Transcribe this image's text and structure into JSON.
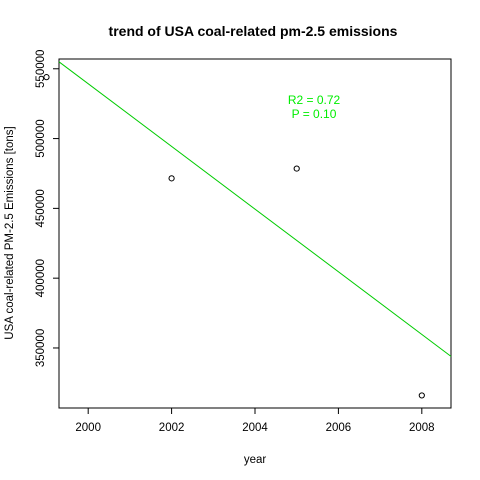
{
  "chart_data": {
    "type": "scatter",
    "title": "trend of USA coal-related pm-2.5 emissions",
    "xlabel": "year",
    "ylabel": "USA coal-related PM-2.5 Emissions [tons]",
    "xlim": [
      1999.3,
      2008.7
    ],
    "ylim": [
      307000,
      557000
    ],
    "xticks": [
      2000,
      2002,
      2004,
      2006,
      2008
    ],
    "yticks": [
      350000,
      400000,
      450000,
      500000,
      550000
    ],
    "grid": false,
    "points": [
      {
        "x": 1999,
        "y": 544000
      },
      {
        "x": 2002,
        "y": 471500
      },
      {
        "x": 2005,
        "y": 478500
      },
      {
        "x": 2008,
        "y": 316000
      }
    ],
    "fit_line": {
      "color": "#00cc00",
      "x_start": 1999.3,
      "y_start": 555000,
      "x_end": 2008.7,
      "y_end": 344000
    },
    "annotations": {
      "r2": "R2 = 0.72",
      "p": "P = 0.10",
      "color": "#00ee00"
    }
  }
}
